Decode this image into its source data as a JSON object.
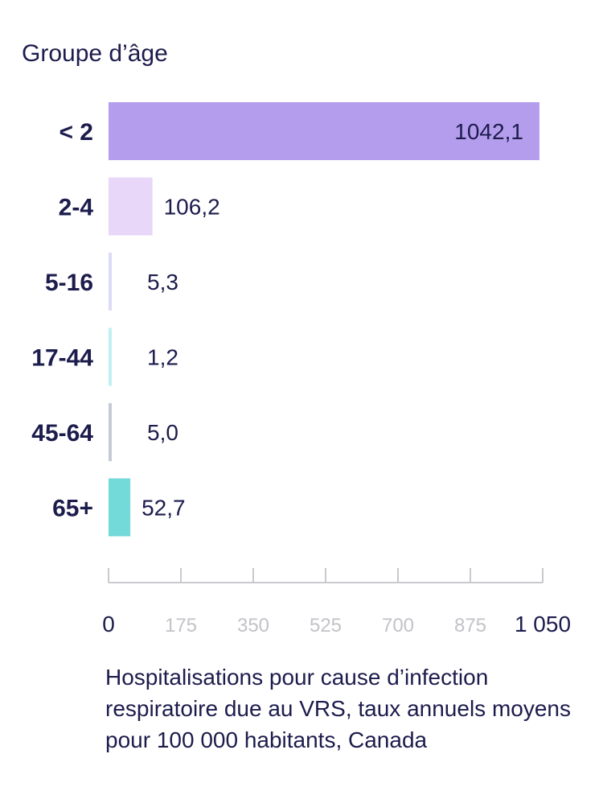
{
  "chart_data": {
    "type": "bar",
    "orientation": "horizontal",
    "ylabel": "Groupe d’âge",
    "xlabel": "Hospitalisations pour cause d’infection respiratoire due au VRS, taux annuels moyens pour 100 000 habitants, Canada",
    "categories": [
      "< 2",
      "2-4",
      "5-16",
      "17-44",
      "45-64",
      "65+"
    ],
    "values": [
      1042.1,
      106.2,
      5.3,
      1.2,
      5.0,
      52.7
    ],
    "value_labels": [
      "1042,1",
      "106,2",
      "5,3",
      "1,2",
      "5,0",
      "52,7"
    ],
    "colors": [
      "#b59ded",
      "#e8d7f8",
      "#dcdcf6",
      "#bff0f2",
      "#c5cad6",
      "#74d9d9"
    ],
    "xlim": [
      0,
      1050
    ],
    "xticks": [
      0,
      175,
      350,
      525,
      700,
      875,
      1050
    ],
    "xtick_labels": [
      "0",
      "175",
      "350",
      "525",
      "700",
      "875",
      "1 050"
    ],
    "grid": false,
    "legend": "none"
  }
}
